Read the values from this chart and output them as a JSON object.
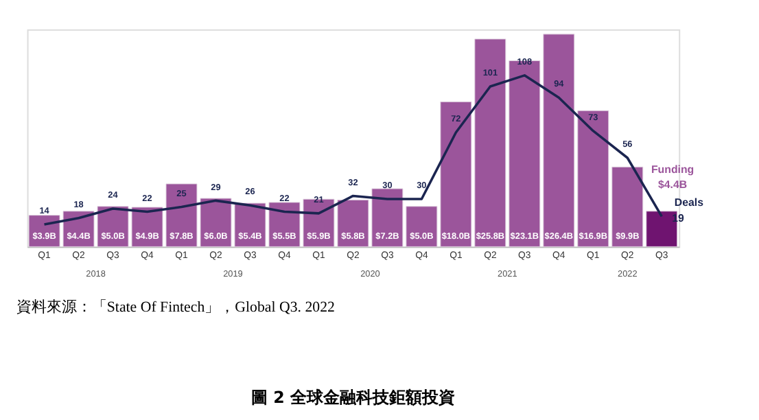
{
  "chart_data": {
    "type": "bar",
    "title": "圖 2 全球金融科技鉅額投資",
    "categories": [
      "Q1",
      "Q2",
      "Q3",
      "Q4",
      "Q1",
      "Q2",
      "Q3",
      "Q4",
      "Q1",
      "Q2",
      "Q3",
      "Q4",
      "Q1",
      "Q2",
      "Q3",
      "Q4",
      "Q1",
      "Q2",
      "Q3"
    ],
    "series": [
      {
        "name": "Funding",
        "color": "#9b559b",
        "colors": [
          "#9b559b",
          "#9b559b",
          "#9b559b",
          "#9b559b",
          "#9b559b",
          "#9b559b",
          "#9b559b",
          "#9b559b",
          "#9b559b",
          "#9b559b",
          "#9b559b",
          "#9b559b",
          "#9b559b",
          "#9b559b",
          "#9b559b",
          "#9b559b",
          "#9b559b",
          "#9b559b",
          "#6f1470"
        ],
        "values": [
          3.9,
          4.4,
          5.0,
          4.9,
          7.8,
          6.0,
          5.4,
          5.5,
          5.9,
          5.8,
          7.2,
          5.0,
          18.0,
          25.8,
          23.1,
          26.4,
          16.9,
          9.9,
          4.4
        ],
        "value_labels": [
          "$3.9B",
          "$4.4B",
          "$5.0B",
          "$4.9B",
          "$7.8B",
          "$6.0B",
          "$5.4B",
          "$5.5B",
          "$5.9B",
          "$5.8B",
          "$7.2B",
          "$5.0B",
          "$18.0B",
          "$25.8B",
          "$23.1B",
          "$26.4B",
          "$16.9B",
          "$9.9B",
          "$4.4B"
        ]
      },
      {
        "name": "Deals",
        "type": "line",
        "axis": "y2",
        "color": "#1b2550",
        "values": [
          14,
          18,
          24,
          22,
          25,
          29,
          26,
          22,
          21,
          32,
          30,
          30,
          72,
          101,
          108,
          94,
          73,
          56,
          19
        ]
      }
    ],
    "data_labels": true,
    "ylim": [
      0,
      27
    ],
    "y2lim": [
      0,
      137
    ],
    "tick_labels": "x",
    "grid": false,
    "annotations": [
      "2018",
      "2019",
      "2020",
      "2021",
      "2022",
      "資料來源：「State Of Fintech」，Global Q3. 2022"
    ]
  }
}
